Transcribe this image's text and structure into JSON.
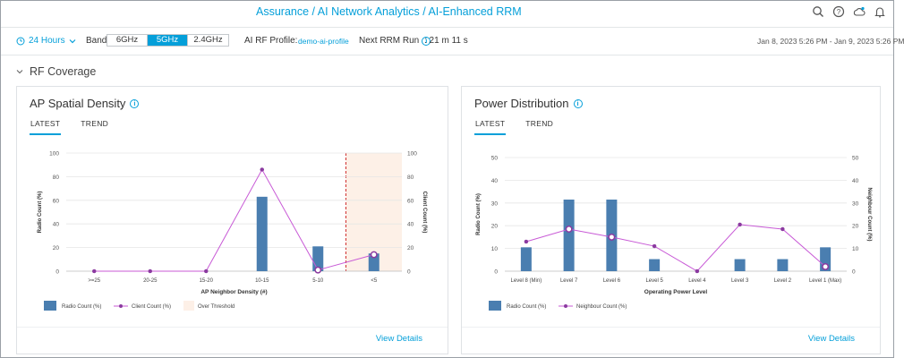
{
  "breadcrumb": {
    "part1": "Assurance",
    "sep1": " / ",
    "part2": "AI Network Analytics",
    "sep2": " / ",
    "part3": "AI-Enhanced RRM"
  },
  "top_icons": [
    "search-icon",
    "help-icon",
    "cloud-icon",
    "bell-icon"
  ],
  "filter": {
    "time_range": "24 Hours",
    "band_label": "Band",
    "bands": [
      "6GHz",
      "5GHz",
      "2.4GHz"
    ],
    "active_band": "5GHz",
    "profile_label": "AI RF Profile:",
    "profile_value": "demo-ai-profile",
    "next_rrm_label": "Next RRM Run",
    "next_rrm_value": ": 21 m 11 s",
    "date_range": "Jan 8, 2023 5:26 PM - Jan 9, 2023 5:26 PM"
  },
  "section": {
    "title": "RF Coverage"
  },
  "colors": {
    "accent": "#049fd9",
    "bar": "#4a7eb0",
    "line": "#c85ad6",
    "threshold_fill": "#fdf0e7",
    "threshold_line": "#d03030"
  },
  "cards": {
    "density": {
      "title": "AP Spatial Density",
      "tabs": [
        "LATEST",
        "TREND"
      ],
      "view_details": "View Details"
    },
    "power": {
      "title": "Power Distribution",
      "tabs": [
        "LATEST",
        "TREND"
      ],
      "view_details": "View Details"
    }
  },
  "chart_data": [
    {
      "id": "density",
      "type": "bar",
      "categories": [
        ">=25",
        "20-25",
        "15-20",
        "10-15",
        "5-10",
        "<5"
      ],
      "series": [
        {
          "name": "Radio Count (%)",
          "kind": "bar",
          "values": [
            0,
            0,
            0,
            63,
            21,
            15
          ]
        },
        {
          "name": "Client Count (%)",
          "kind": "line",
          "values": [
            0,
            0,
            0,
            86,
            1,
            14
          ]
        }
      ],
      "xlabel": "AP Neighbor Density (#)",
      "ylabel": "Radio Count (%)",
      "y2label": "Client Count (%)",
      "ylim": [
        0,
        100
      ],
      "yticks": [
        0,
        20,
        40,
        60,
        80,
        100
      ],
      "threshold_category": "<5",
      "threshold_label": "Over Threshold",
      "legend": [
        "Radio Count (%)",
        "Client Count (%)",
        "Over Threshold"
      ],
      "grid": true
    },
    {
      "id": "power",
      "type": "bar",
      "categories": [
        "Level 8 (Min)",
        "Level 7",
        "Level 6",
        "Level 5",
        "Level 4",
        "Level 3",
        "Level 2",
        "Level 1 (Max)"
      ],
      "series": [
        {
          "name": "Radio Count (%)",
          "kind": "bar",
          "values": [
            10.5,
            31.5,
            31.5,
            5.3,
            0,
            5.3,
            5.3,
            10.5
          ]
        },
        {
          "name": "Neighbour Count (%)",
          "kind": "line",
          "values": [
            13,
            18.5,
            15,
            11,
            0,
            20.5,
            18.5,
            2
          ]
        }
      ],
      "xlabel": "Operating Power Level",
      "ylabel": "Radio Count (%)",
      "y2label": "Neighbour Count (%)",
      "ylim": [
        0,
        50
      ],
      "yticks": [
        0,
        10,
        20,
        30,
        40,
        50
      ],
      "legend": [
        "Radio Count (%)",
        "Neighbour Count (%)"
      ],
      "grid": true
    }
  ]
}
